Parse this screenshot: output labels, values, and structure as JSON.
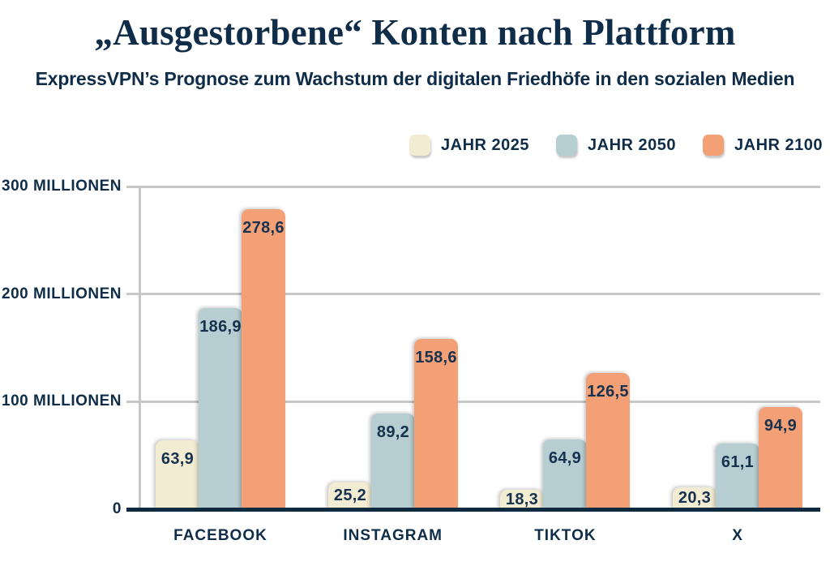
{
  "header": {
    "title": "„Ausgestorbene“ Konten nach Plattform",
    "subtitle": "ExpressVPN’s Prognose zum Wachstum der digitalen Friedhöfe in den sozialen Medien"
  },
  "colors": {
    "navy_text": "#0F2D49",
    "value_label": "#16324E",
    "grid_gray": "#C5C8C5",
    "baseline_navy": "#0D2A3E",
    "background": "#FFFFFF"
  },
  "chart_data": {
    "type": "bar",
    "title": "„Ausgestorbene“ Konten nach Plattform",
    "subtitle": "ExpressVPN’s Prognose zum Wachstum der digitalen Friedhöfe in den sozialen Medien",
    "unit": "Millionen",
    "categories": [
      "FACEBOOK",
      "INSTAGRAM",
      "TIKTOK",
      "X"
    ],
    "series": [
      {
        "name": "JAHR 2025",
        "year": "2025",
        "color": "#F2ECD3",
        "values": [
          63.9,
          25.2,
          18.3,
          20.3
        ]
      },
      {
        "name": "JAHR 2050",
        "year": "2050",
        "color": "#B6CDD1",
        "values": [
          186.9,
          89.2,
          64.9,
          61.1
        ]
      },
      {
        "name": "JAHR 2100",
        "year": "2100",
        "color": "#F4A076",
        "values": [
          278.6,
          158.6,
          126.5,
          94.9
        ]
      }
    ],
    "ylim": [
      0,
      300
    ],
    "yticks": [
      {
        "value": 0,
        "label": "0"
      },
      {
        "value": 100,
        "label": "100 MILLIONEN"
      },
      {
        "value": 200,
        "label": "200 MILLIONEN"
      },
      {
        "value": 300,
        "label": "300 MILLIONEN"
      }
    ],
    "value_decimal_separator": ",",
    "legend_position": "top-right",
    "grid": true,
    "value_labels": "inside-top"
  }
}
